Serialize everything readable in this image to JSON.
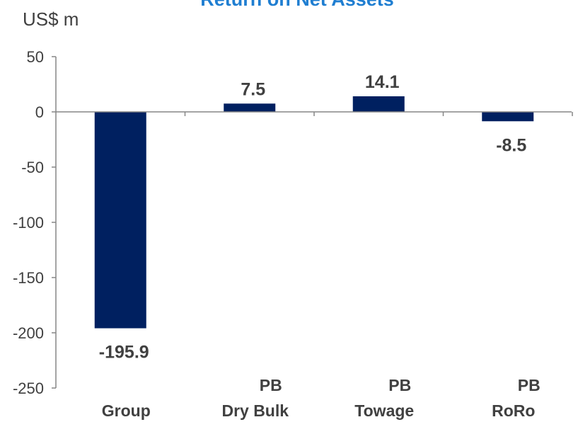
{
  "chart_data": {
    "type": "bar",
    "title": "Return on Net Assets",
    "ylabel": "US$ m",
    "ylim": [
      -250,
      50
    ],
    "yticks": [
      50,
      0,
      -50,
      -100,
      -150,
      -200,
      -250
    ],
    "categories": [
      [
        "",
        "Group"
      ],
      [
        "PB",
        "Dry Bulk"
      ],
      [
        "PB",
        "Towage"
      ],
      [
        "PB",
        "RoRo"
      ]
    ],
    "values": [
      -195.9,
      7.5,
      14.1,
      -8.5
    ],
    "data_labels": [
      "-195.9",
      "7.5",
      "14.1",
      "-8.5"
    ],
    "bar_color": "#002060",
    "title_color": "#1f7ed1",
    "grid": false,
    "legend": "none"
  }
}
